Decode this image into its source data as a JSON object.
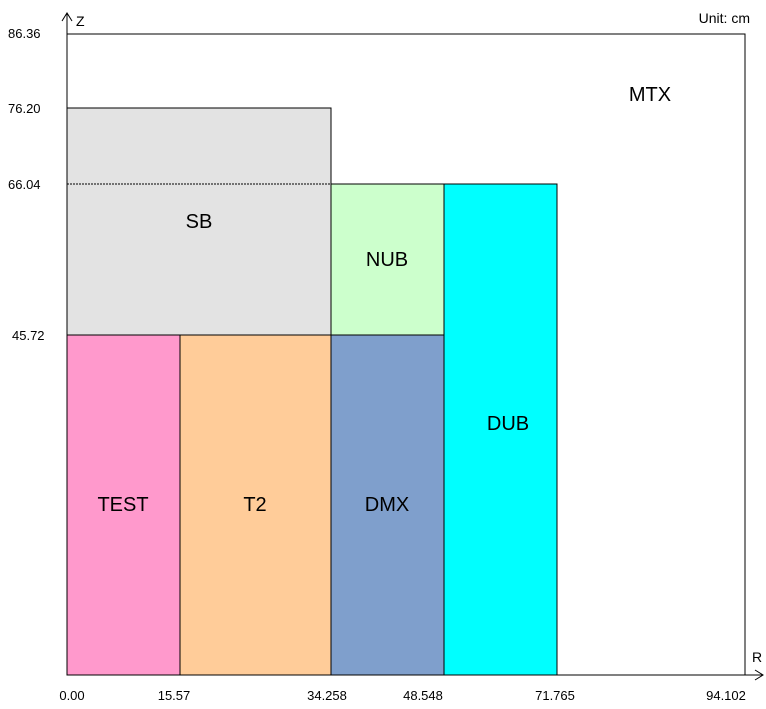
{
  "unit_label": "Unit: cm",
  "axes": {
    "z_label": "Z",
    "r_label": "R",
    "z_ticks": [
      "86.36",
      "76.20",
      "66.04",
      "45.72"
    ],
    "r_ticks": [
      "0.00",
      "15.57",
      "34.258",
      "48.548",
      "71.765",
      "94.102"
    ]
  },
  "regions": [
    {
      "name": "MTX",
      "color": "#ffffff"
    },
    {
      "name": "SB",
      "color": "#e3e3e3"
    },
    {
      "name": "NUB",
      "color": "#ccffcc"
    },
    {
      "name": "TEST",
      "color": "#ff99cc"
    },
    {
      "name": "T2",
      "color": "#ffcc99"
    },
    {
      "name": "DMX",
      "color": "#7f9fcc"
    },
    {
      "name": "DUB",
      "color": "#00ffff"
    }
  ]
}
